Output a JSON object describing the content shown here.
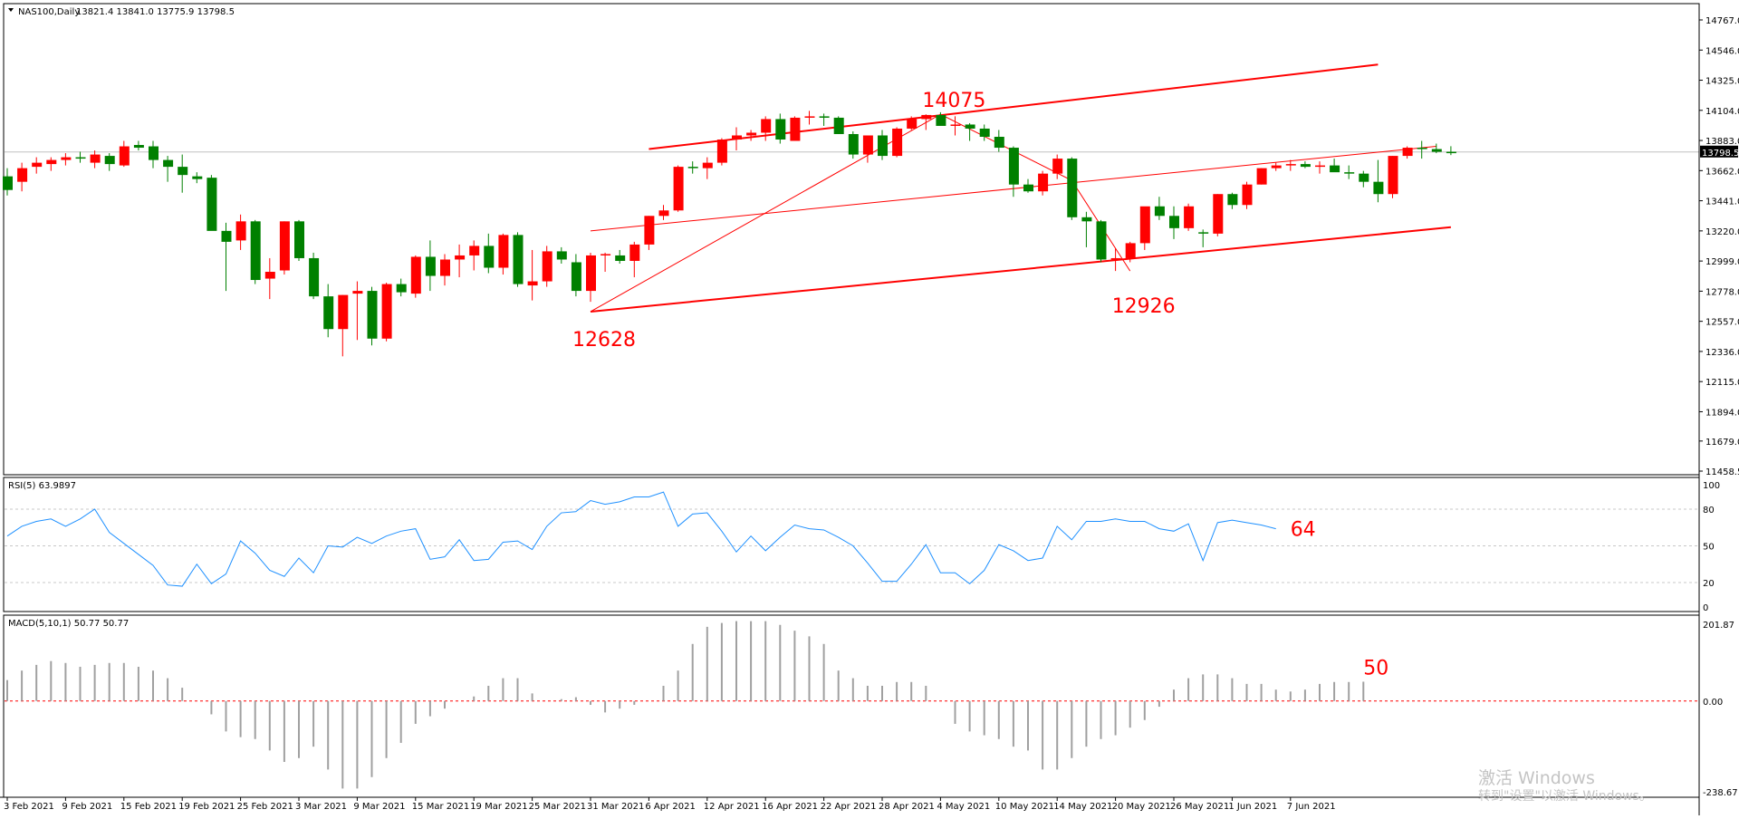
{
  "window": {
    "symbol_title": "NAS100,Daily",
    "ohlc_text": "13821.4 13841.0 13775.9 13798.5",
    "current_price_label": "13798.5",
    "current_price": 13798.5
  },
  "chart_data": [
    {
      "type": "candlestick",
      "title": "NAS100,Daily",
      "yticks": [
        "14767.0",
        "14546.0",
        "14325.0",
        "14104.0",
        "13883.0",
        "13662.0",
        "13441.0",
        "13220.0",
        "12999.0",
        "12778.0",
        "12557.0",
        "12336.0",
        "12115.0",
        "11894.0",
        "11679.0",
        "11458.5"
      ],
      "ylim": [
        11458.5,
        14767.0
      ],
      "xlabels": [
        "3 Feb 2021",
        "9 Feb 2021",
        "15 Feb 2021",
        "19 Feb 2021",
        "25 Feb 2021",
        "3 Mar 2021",
        "9 Mar 2021",
        "15 Mar 2021",
        "19 Mar 2021",
        "25 Mar 2021",
        "31 Mar 2021",
        "6 Apr 2021",
        "12 Apr 2021",
        "16 Apr 2021",
        "22 Apr 2021",
        "28 Apr 2021",
        "4 May 2021",
        "10 May 2021",
        "14 May 2021",
        "20 May 2021",
        "26 May 2021",
        "1 Jun 2021",
        "7 Jun 2021"
      ],
      "candles": [
        [
          13620,
          13680,
          13480,
          13520
        ],
        [
          13580,
          13720,
          13510,
          13680
        ],
        [
          13690,
          13760,
          13640,
          13720
        ],
        [
          13710,
          13760,
          13660,
          13740
        ],
        [
          13740,
          13790,
          13700,
          13760
        ],
        [
          13760,
          13800,
          13720,
          13750
        ],
        [
          13720,
          13810,
          13680,
          13780
        ],
        [
          13770,
          13790,
          13660,
          13710
        ],
        [
          13700,
          13880,
          13690,
          13840
        ],
        [
          13850,
          13880,
          13810,
          13830
        ],
        [
          13840,
          13880,
          13680,
          13740
        ],
        [
          13740,
          13770,
          13580,
          13690
        ],
        [
          13690,
          13780,
          13500,
          13630
        ],
        [
          13620,
          13650,
          13570,
          13600
        ],
        [
          13610,
          13630,
          13250,
          13220
        ],
        [
          13220,
          13280,
          12780,
          13140
        ],
        [
          13150,
          13340,
          13080,
          13290
        ],
        [
          13290,
          13300,
          12830,
          12860
        ],
        [
          12870,
          13020,
          12720,
          12920
        ],
        [
          12930,
          13290,
          12900,
          13290
        ],
        [
          13290,
          13300,
          13000,
          13020
        ],
        [
          13020,
          13060,
          12720,
          12740
        ],
        [
          12740,
          12830,
          12440,
          12500
        ],
        [
          12500,
          12750,
          12300,
          12750
        ],
        [
          12760,
          12850,
          12420,
          12780
        ],
        [
          12780,
          12810,
          12380,
          12430
        ],
        [
          12430,
          12840,
          12410,
          12830
        ],
        [
          12830,
          12870,
          12740,
          12770
        ],
        [
          12760,
          13040,
          12730,
          13030
        ],
        [
          13030,
          13150,
          12780,
          12890
        ],
        [
          12890,
          13050,
          12820,
          13010
        ],
        [
          13010,
          13120,
          12880,
          13040
        ],
        [
          13040,
          13150,
          12930,
          13110
        ],
        [
          13110,
          13200,
          12910,
          12950
        ],
        [
          12950,
          13200,
          12900,
          13190
        ],
        [
          13190,
          13210,
          12810,
          12830
        ],
        [
          12820,
          13080,
          12710,
          12850
        ],
        [
          12850,
          13110,
          12810,
          13070
        ],
        [
          13070,
          13100,
          12980,
          13010
        ],
        [
          12990,
          13050,
          12740,
          12780
        ],
        [
          12780,
          13060,
          12700,
          13040
        ],
        [
          13040,
          13060,
          12920,
          13050
        ],
        [
          13040,
          13080,
          12980,
          13000
        ],
        [
          13000,
          13140,
          12880,
          13120
        ],
        [
          13120,
          13330,
          13080,
          13330
        ],
        [
          13330,
          13410,
          13300,
          13370
        ],
        [
          13370,
          13700,
          13360,
          13690
        ],
        [
          13690,
          13730,
          13640,
          13680
        ],
        [
          13680,
          13760,
          13600,
          13720
        ],
        [
          13720,
          13900,
          13700,
          13890
        ],
        [
          13890,
          13980,
          13810,
          13920
        ],
        [
          13920,
          13960,
          13880,
          13940
        ],
        [
          13940,
          14060,
          13880,
          14040
        ],
        [
          14040,
          14080,
          13860,
          13890
        ],
        [
          13880,
          14060,
          13880,
          14050
        ],
        [
          14050,
          14100,
          14000,
          14060
        ],
        [
          14060,
          14080,
          13990,
          14050
        ],
        [
          14050,
          14060,
          13930,
          13930
        ],
        [
          13930,
          13950,
          13750,
          13780
        ],
        [
          13780,
          13920,
          13720,
          13920
        ],
        [
          13920,
          13960,
          13740,
          13770
        ],
        [
          13770,
          13980,
          13760,
          13970
        ],
        [
          13970,
          14060,
          13960,
          14040
        ],
        [
          14040,
          14075,
          13960,
          14070
        ],
        [
          14070,
          14090,
          14000,
          13990
        ],
        [
          13990,
          14060,
          13920,
          14000
        ],
        [
          14000,
          14010,
          13880,
          13970
        ],
        [
          13970,
          14000,
          13880,
          13910
        ],
        [
          13910,
          13960,
          13800,
          13830
        ],
        [
          13830,
          13840,
          13470,
          13560
        ],
        [
          13560,
          13600,
          13500,
          13510
        ],
        [
          13510,
          13660,
          13480,
          13640
        ],
        [
          13640,
          13780,
          13600,
          13750
        ],
        [
          13750,
          13760,
          13300,
          13320
        ],
        [
          13320,
          13360,
          13100,
          13290
        ],
        [
          13290,
          13300,
          12990,
          13010
        ],
        [
          13010,
          13090,
          12926,
          13020
        ],
        [
          13020,
          13140,
          12990,
          13130
        ],
        [
          13130,
          13390,
          13080,
          13400
        ],
        [
          13400,
          13470,
          13300,
          13330
        ],
        [
          13330,
          13400,
          13160,
          13240
        ],
        [
          13240,
          13420,
          13220,
          13400
        ],
        [
          13210,
          13230,
          13100,
          13200
        ],
        [
          13200,
          13490,
          13180,
          13490
        ],
        [
          13490,
          13500,
          13380,
          13410
        ],
        [
          13410,
          13580,
          13380,
          13560
        ],
        [
          13560,
          13680,
          13560,
          13680
        ],
        [
          13680,
          13720,
          13660,
          13700
        ],
        [
          13700,
          13740,
          13660,
          13710
        ],
        [
          13710,
          13730,
          13680,
          13690
        ],
        [
          13690,
          13730,
          13640,
          13700
        ],
        [
          13700,
          13750,
          13660,
          13650
        ],
        [
          13650,
          13700,
          13600,
          13640
        ],
        [
          13640,
          13660,
          13540,
          13580
        ],
        [
          13580,
          13740,
          13430,
          13490
        ],
        [
          13490,
          13770,
          13460,
          13770
        ],
        [
          13770,
          13840,
          13750,
          13830
        ],
        [
          13830,
          13880,
          13750,
          13820
        ],
        [
          13820,
          13860,
          13790,
          13800
        ],
        [
          13800,
          13841,
          13775.9,
          13798.5
        ]
      ],
      "colors": {
        "up": "#ff0000",
        "down": "#008000",
        "trendline": "#ff0000",
        "price_line": "#c0c0c0"
      },
      "annotations": [
        "14075",
        "12926",
        "12628"
      ],
      "channel_lines": [
        {
          "from": [
            44,
            13820
          ],
          "to": [
            94,
            14440
          ]
        },
        {
          "from": [
            40,
            12628
          ],
          "to": [
            99,
            13247
          ]
        }
      ],
      "midline": {
        "from": [
          40,
          13220
        ],
        "to": [
          98,
          13840
        ]
      },
      "zigzag": [
        [
          40,
          12628
        ],
        [
          64,
          14075
        ],
        [
          73,
          13590
        ],
        [
          77,
          12926
        ]
      ]
    },
    {
      "type": "line",
      "title": "RSI(5) 63.9897",
      "ylim": [
        0,
        100
      ],
      "yticks": [
        "100",
        "80",
        "50",
        "20",
        "0"
      ],
      "levels": [
        80,
        50,
        20
      ],
      "annotation": "64",
      "color": "#1e90ff",
      "values": [
        58,
        66,
        70,
        72,
        66,
        72,
        80,
        61,
        52,
        43,
        34,
        18,
        17,
        35,
        19,
        27,
        54,
        44,
        30,
        25,
        40,
        28,
        50,
        49,
        57,
        52,
        58,
        62,
        64,
        39,
        41,
        55,
        38,
        39,
        53,
        54,
        47,
        66,
        77,
        78,
        87,
        84,
        86,
        90,
        90,
        94,
        66,
        76,
        77,
        62,
        45,
        58,
        46,
        57,
        67,
        64,
        63,
        57,
        50,
        36,
        21,
        21,
        35,
        51,
        28,
        28,
        19,
        30,
        51,
        46,
        38,
        40,
        66,
        55,
        70,
        70,
        72,
        70,
        70,
        64,
        62,
        68,
        38,
        69,
        71,
        69,
        67,
        64
      ]
    },
    {
      "type": "bar",
      "title": "MACD(5,10,1) 50.77 50.77",
      "ylim": [
        -238.67,
        201.87
      ],
      "yticks": [
        "201.87",
        "0.00",
        "-238.67"
      ],
      "annotation": "50",
      "color": "#a0a0a0",
      "zero_line_color": "#ff0000",
      "values": [
        55,
        80,
        95,
        105,
        100,
        90,
        95,
        100,
        100,
        90,
        80,
        60,
        35,
        0,
        -35,
        -80,
        -95,
        -100,
        -130,
        -160,
        -150,
        -120,
        -180,
        -230,
        -230,
        -200,
        -150,
        -110,
        -60,
        -40,
        -20,
        0,
        12,
        40,
        60,
        60,
        20,
        0,
        5,
        10,
        -10,
        -30,
        -20,
        -10,
        0,
        40,
        80,
        150,
        195,
        205,
        210,
        210,
        210,
        200,
        185,
        170,
        150,
        80,
        60,
        40,
        40,
        50,
        50,
        40,
        0,
        -60,
        -80,
        -90,
        -100,
        -120,
        -130,
        -180,
        -180,
        -150,
        -120,
        -100,
        -90,
        -70,
        -50,
        -15,
        30,
        60,
        70,
        70,
        60,
        45,
        45,
        30,
        25,
        30,
        45,
        50,
        50,
        50.77
      ]
    }
  ],
  "price_axis": {
    "current": "13798.5"
  },
  "watermark": {
    "line1": "激活 Windows",
    "line2": "转到\"设置\"以激活 Windows。"
  }
}
